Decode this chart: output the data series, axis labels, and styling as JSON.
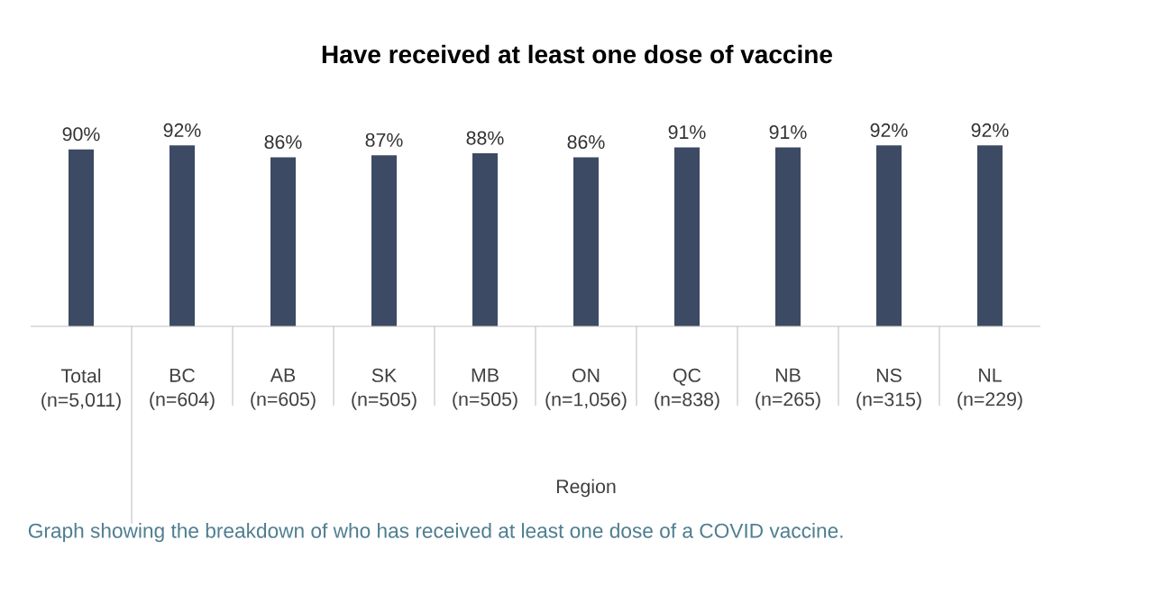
{
  "chart_data": {
    "type": "bar",
    "title": "Have received at least one dose of vaccine",
    "xlabel": "Region",
    "categories": [
      "Total (n=5,011)",
      "BC (n=604)",
      "AB (n=605)",
      "SK (n=505)",
      "MB (n=505)",
      "ON (n=1,056)",
      "QC (n=838)",
      "NB (n=265)",
      "NS (n=315)",
      "NL (n=229)"
    ],
    "values": [
      90,
      92,
      86,
      87,
      88,
      86,
      91,
      91,
      92,
      92
    ],
    "value_labels": [
      "90%",
      "92%",
      "86%",
      "87%",
      "88%",
      "86%",
      "91%",
      "91%",
      "92%",
      "92%"
    ],
    "color": "#3c4a64",
    "annotations": [
      "Graph showing the breakdown of who has received at least one dose of a COVID vaccine."
    ]
  }
}
